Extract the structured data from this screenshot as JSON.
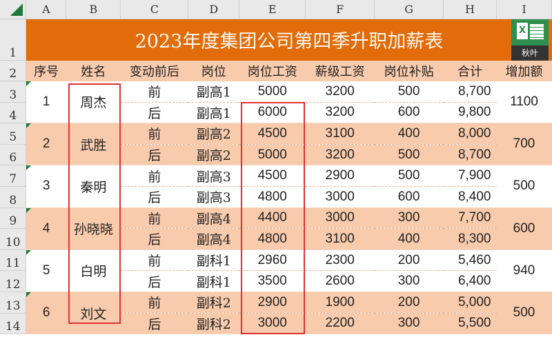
{
  "columns": [
    "A",
    "B",
    "C",
    "D",
    "E",
    "F",
    "G",
    "H",
    "I"
  ],
  "title": "2023年度集团公司第四季升职加薪表",
  "logo_text": "秋叶",
  "headers": [
    "序号",
    "姓名",
    "变动前后",
    "岗位",
    "岗位工资",
    "薪级工资",
    "岗位补贴",
    "合计",
    "增加额"
  ],
  "groups": [
    {
      "num": "1",
      "name": "周杰",
      "increase": "1100",
      "rows": [
        [
          "前",
          "副高1",
          "5000",
          "3200",
          "500",
          "8,700"
        ],
        [
          "后",
          "副高1",
          "6000",
          "3200",
          "600",
          "9,800"
        ]
      ]
    },
    {
      "num": "2",
      "name": "武胜",
      "increase": "700",
      "rows": [
        [
          "前",
          "副高2",
          "4500",
          "3100",
          "400",
          "8,000"
        ],
        [
          "后",
          "副高2",
          "5000",
          "3200",
          "500",
          "8,700"
        ]
      ]
    },
    {
      "num": "3",
      "name": "秦明",
      "increase": "500",
      "rows": [
        [
          "前",
          "副高3",
          "4500",
          "2900",
          "500",
          "7,900"
        ],
        [
          "后",
          "副高3",
          "4800",
          "3000",
          "600",
          "8,400"
        ]
      ]
    },
    {
      "num": "4",
      "name": "孙晓晓",
      "increase": "600",
      "rows": [
        [
          "前",
          "副高4",
          "4400",
          "3000",
          "300",
          "7,700"
        ],
        [
          "后",
          "副高4",
          "4800",
          "3100",
          "400",
          "8,300"
        ]
      ]
    },
    {
      "num": "5",
      "name": "白明",
      "increase": "940",
      "rows": [
        [
          "前",
          "副科1",
          "2960",
          "2300",
          "200",
          "5,460"
        ],
        [
          "后",
          "副科1",
          "3500",
          "2600",
          "300",
          "6,400"
        ]
      ]
    },
    {
      "num": "6",
      "name": "刘文",
      "increase": "500",
      "rows": [
        [
          "前",
          "副科2",
          "2900",
          "1900",
          "200",
          "5,000"
        ],
        [
          "后",
          "副科2",
          "3000",
          "2200",
          "300",
          "5,500"
        ]
      ]
    }
  ]
}
